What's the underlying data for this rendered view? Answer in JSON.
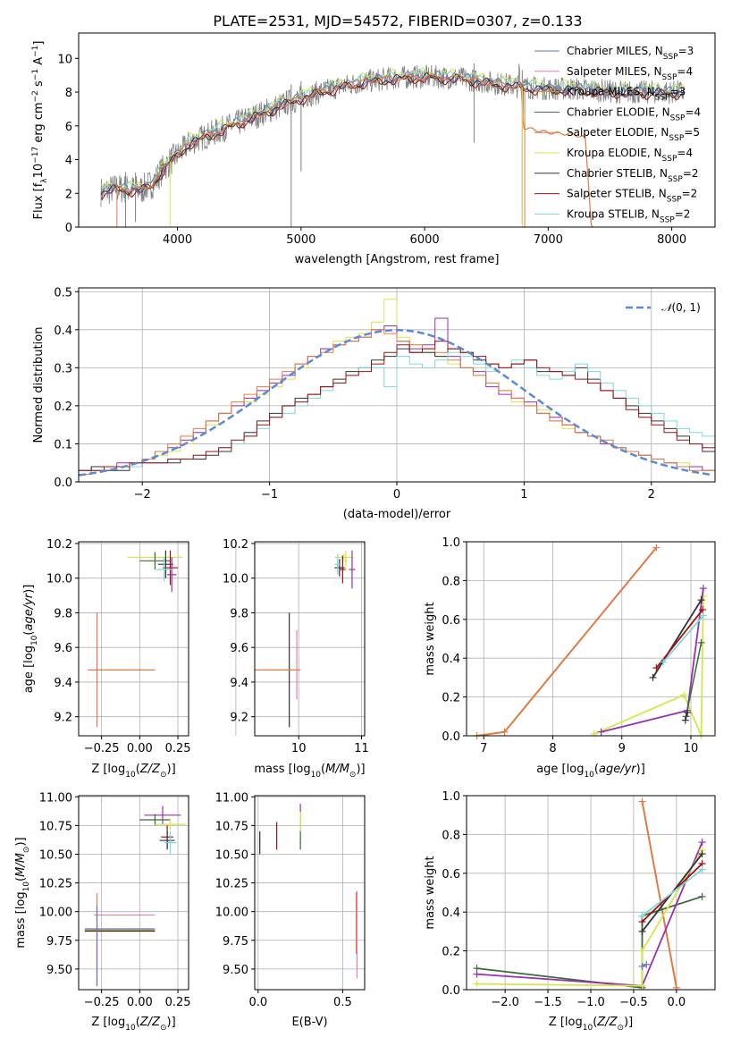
{
  "title": "PLATE=2531, MJD=54572, FIBERID=0307, z=0.133",
  "colors": {
    "Chabrier MILES": "#6a73c9",
    "Salpeter MILES": "#f07aa8",
    "Kroupa MILES": "#c39b2a",
    "Chabrier ELODIE": "#3a6b3a",
    "Salpeter ELODIE": "#e07a44",
    "Kroupa ELODIE": "#d4e64c",
    "Chabrier STELIB": "#333333",
    "Salpeter STELIB": "#a01010",
    "Kroupa STELIB": "#7fd6dc",
    "data": "#808080",
    "purple": "#9a2fb0",
    "gaussian": "#5b8bd6"
  },
  "chart_data": [
    {
      "type": "line",
      "name": "spectrum",
      "title": "PLATE=2531, MJD=54572, FIBERID=0307, z=0.133",
      "xlabel": "wavelength [Angstrom, rest frame]",
      "ylabel": "Flux [f_λ 10^-17 erg cm^-2 s^-1 A^-1]",
      "xlim": [
        3200,
        8350
      ],
      "ylim": [
        0,
        11.5
      ],
      "xticks": [
        4000,
        5000,
        6000,
        7000,
        8000
      ],
      "yticks": [
        0,
        2,
        4,
        6,
        8,
        10
      ],
      "legend_position": "right",
      "legend": [
        "Chabrier MILES, N_SSP=3",
        "Salpeter MILES, N_SSP=4",
        "Kroupa MILES, N_SSP=3",
        "Chabrier ELODIE, N_SSP=4",
        "Salpeter ELODIE, N_SSP=5",
        "Kroupa ELODIE, N_SSP=4",
        "Chabrier STELIB, N_SSP=2",
        "Salpeter STELIB, N_SSP=2",
        "Kroupa STELIB, N_SSP=2"
      ],
      "model_curve_x": [
        3400,
        3500,
        3700,
        3800,
        3900,
        4000,
        4100,
        4300,
        4500,
        4700,
        4900,
        5100,
        5300,
        5500,
        5700,
        5900,
        6100,
        6300,
        6500,
        6700,
        6800,
        7000,
        7200,
        7400,
        7600,
        7800,
        8000,
        8100
      ],
      "model_curve_y": [
        2.1,
        2.3,
        2.2,
        2.6,
        3.6,
        4.3,
        5.0,
        5.6,
        6.2,
        6.8,
        7.4,
        7.9,
        8.3,
        8.6,
        8.8,
        8.9,
        8.9,
        8.8,
        8.6,
        8.4,
        8.3,
        8.2,
        8.2,
        8.1,
        8.0,
        8.0,
        8.0,
        8.0
      ],
      "elodie_curve_x": [
        3400,
        3500,
        3700,
        3800,
        3900,
        4000,
        4100,
        4300,
        4500,
        4700,
        4900,
        5100,
        5300,
        5500,
        5700,
        5900,
        6100,
        6300,
        6500,
        6700,
        6780,
        6800,
        7000,
        7200,
        7300,
        7350
      ],
      "elodie_curve_y": [
        2.1,
        2.3,
        2.2,
        2.6,
        3.6,
        4.3,
        5.0,
        5.6,
        6.2,
        6.8,
        7.4,
        7.9,
        8.3,
        8.6,
        8.8,
        8.9,
        8.9,
        8.8,
        8.6,
        8.4,
        8.3,
        5.9,
        5.6,
        5.5,
        5.3,
        0.0
      ]
    },
    {
      "type": "histogram",
      "name": "residuals",
      "xlabel": "(data-model)/error",
      "ylabel": "Normed distribution",
      "xlim": [
        -2.5,
        2.5
      ],
      "ylim": [
        0,
        0.51
      ],
      "xticks": [
        -2,
        -1,
        0,
        1,
        2
      ],
      "yticks": [
        0.0,
        0.1,
        0.2,
        0.3,
        0.4,
        0.5
      ],
      "legend": [
        "N(0,1)"
      ],
      "legend_position": "top-right",
      "bin_width": 0.1,
      "bin_start": -2.5,
      "series": [
        {
          "color": "#d4e64c",
          "values": [
            0.02,
            0.03,
            0.03,
            0.04,
            0.05,
            0.06,
            0.07,
            0.08,
            0.1,
            0.13,
            0.15,
            0.18,
            0.2,
            0.21,
            0.23,
            0.25,
            0.27,
            0.3,
            0.33,
            0.35,
            0.37,
            0.38,
            0.39,
            0.42,
            0.48,
            0.38,
            0.36,
            0.34,
            0.33,
            0.31,
            0.3,
            0.28,
            0.26,
            0.24,
            0.21,
            0.2,
            0.19,
            0.16,
            0.14,
            0.13,
            0.12,
            0.1,
            0.09,
            0.08,
            0.07,
            0.06,
            0.05,
            0.05,
            0.04,
            0.03
          ]
        },
        {
          "color": "#9a2fb0",
          "values": [
            0.03,
            0.04,
            0.04,
            0.05,
            0.05,
            0.06,
            0.08,
            0.09,
            0.11,
            0.13,
            0.16,
            0.18,
            0.2,
            0.22,
            0.24,
            0.26,
            0.28,
            0.31,
            0.33,
            0.35,
            0.36,
            0.37,
            0.38,
            0.4,
            0.41,
            0.37,
            0.35,
            0.36,
            0.43,
            0.33,
            0.3,
            0.29,
            0.25,
            0.23,
            0.22,
            0.21,
            0.18,
            0.17,
            0.15,
            0.13,
            0.12,
            0.1,
            0.09,
            0.08,
            0.07,
            0.06,
            0.05,
            0.04,
            0.04,
            0.03
          ]
        },
        {
          "color": "#e07a44",
          "values": [
            0.02,
            0.03,
            0.04,
            0.04,
            0.05,
            0.06,
            0.08,
            0.1,
            0.12,
            0.14,
            0.16,
            0.18,
            0.21,
            0.23,
            0.25,
            0.27,
            0.29,
            0.31,
            0.33,
            0.34,
            0.36,
            0.37,
            0.38,
            0.4,
            0.39,
            0.37,
            0.36,
            0.35,
            0.34,
            0.32,
            0.3,
            0.28,
            0.26,
            0.24,
            0.22,
            0.2,
            0.18,
            0.16,
            0.15,
            0.13,
            0.12,
            0.11,
            0.09,
            0.08,
            0.07,
            0.06,
            0.05,
            0.04,
            0.03,
            0.03
          ]
        },
        {
          "color": "#333333",
          "values": [
            0.03,
            0.04,
            0.03,
            0.03,
            0.04,
            0.05,
            0.05,
            0.05,
            0.06,
            0.06,
            0.07,
            0.08,
            0.1,
            0.13,
            0.16,
            0.18,
            0.2,
            0.22,
            0.23,
            0.25,
            0.27,
            0.29,
            0.3,
            0.32,
            0.33,
            0.35,
            0.34,
            0.34,
            0.33,
            0.35,
            0.34,
            0.32,
            0.31,
            0.3,
            0.31,
            0.32,
            0.29,
            0.29,
            0.28,
            0.3,
            0.27,
            0.24,
            0.22,
            0.2,
            0.18,
            0.16,
            0.14,
            0.12,
            0.1,
            0.08
          ]
        },
        {
          "color": "#7fd6dc",
          "values": [
            0.03,
            0.03,
            0.04,
            0.04,
            0.04,
            0.05,
            0.05,
            0.06,
            0.06,
            0.07,
            0.08,
            0.09,
            0.1,
            0.12,
            0.14,
            0.17,
            0.18,
            0.2,
            0.22,
            0.24,
            0.26,
            0.28,
            0.3,
            0.3,
            0.25,
            0.33,
            0.31,
            0.3,
            0.32,
            0.34,
            0.33,
            0.31,
            0.29,
            0.3,
            0.32,
            0.3,
            0.28,
            0.27,
            0.29,
            0.31,
            0.29,
            0.26,
            0.24,
            0.22,
            0.2,
            0.18,
            0.16,
            0.14,
            0.13,
            0.12
          ]
        },
        {
          "color": "#a01010",
          "values": [
            0.03,
            0.03,
            0.04,
            0.04,
            0.05,
            0.05,
            0.05,
            0.06,
            0.06,
            0.07,
            0.08,
            0.09,
            0.11,
            0.12,
            0.15,
            0.17,
            0.2,
            0.21,
            0.23,
            0.25,
            0.26,
            0.28,
            0.29,
            0.31,
            0.34,
            0.36,
            0.34,
            0.35,
            0.37,
            0.35,
            0.34,
            0.33,
            0.31,
            0.3,
            0.31,
            0.32,
            0.3,
            0.29,
            0.28,
            0.27,
            0.26,
            0.24,
            0.22,
            0.19,
            0.17,
            0.15,
            0.13,
            0.11,
            0.1,
            0.09
          ]
        }
      ]
    },
    {
      "type": "errorbar",
      "name": "age-vs-Z",
      "xlabel": "Z [log10(Z/Z⊙)]",
      "ylabel": "age  [log10(age/yr)]",
      "xlim": [
        -0.4,
        0.32
      ],
      "ylim": [
        9.09,
        10.21
      ],
      "xticks": [
        -0.25,
        0.0,
        0.25
      ],
      "yticks": [
        9.2,
        9.4,
        9.6,
        9.8,
        10.0,
        10.2
      ]
    },
    {
      "type": "errorbar",
      "name": "age-vs-mass",
      "xlabel": "mass [log10(M/M⊙)]",
      "xlim": [
        9.3,
        11.05
      ],
      "ylim": [
        9.09,
        10.21
      ],
      "xticks": [
        9,
        10,
        11
      ],
      "yticks": [
        9.2,
        9.4,
        9.6,
        9.8,
        10.0,
        10.2
      ]
    },
    {
      "type": "line",
      "name": "massweight-vs-age",
      "xlabel": "age  [log10(age/yr)]",
      "ylabel": "mass weight",
      "xlim": [
        6.75,
        10.35
      ],
      "ylim": [
        0.0,
        1.0
      ],
      "xticks": [
        7,
        8,
        9,
        10
      ],
      "yticks": [
        0.0,
        0.2,
        0.4,
        0.6,
        0.8,
        1.0
      ]
    },
    {
      "type": "errorbar",
      "name": "mass-vs-Z",
      "xlabel": "Z [log10(Z/Z⊙)]",
      "ylabel": "mass [log10(M/M⊙)]",
      "xlim": [
        -0.4,
        0.32
      ],
      "ylim": [
        9.32,
        11.01
      ],
      "xticks": [
        -0.25,
        0.0,
        0.25
      ],
      "yticks": [
        9.5,
        9.75,
        10.0,
        10.25,
        10.5,
        10.75,
        11.0
      ]
    },
    {
      "type": "errorbar",
      "name": "mass-vs-EBV",
      "xlabel": "E(B-V)",
      "xlim": [
        -0.02,
        0.63
      ],
      "ylim": [
        9.32,
        11.01
      ],
      "xticks": [
        0.0,
        0.5
      ],
      "yticks": [
        9.5,
        9.75,
        10.0,
        10.25,
        10.5,
        10.75,
        11.0
      ]
    },
    {
      "type": "line",
      "name": "massweight-vs-Z",
      "xlabel": "Z [log10(Z/Z⊙)]",
      "ylabel": "mass weight",
      "xlim": [
        -2.45,
        0.45
      ],
      "ylim": [
        0.0,
        1.0
      ],
      "xticks": [
        -2.0,
        -1.5,
        -1.0,
        -0.5,
        0.0
      ],
      "yticks": [
        0.0,
        0.2,
        0.4,
        0.6,
        0.8,
        1.0
      ]
    }
  ]
}
